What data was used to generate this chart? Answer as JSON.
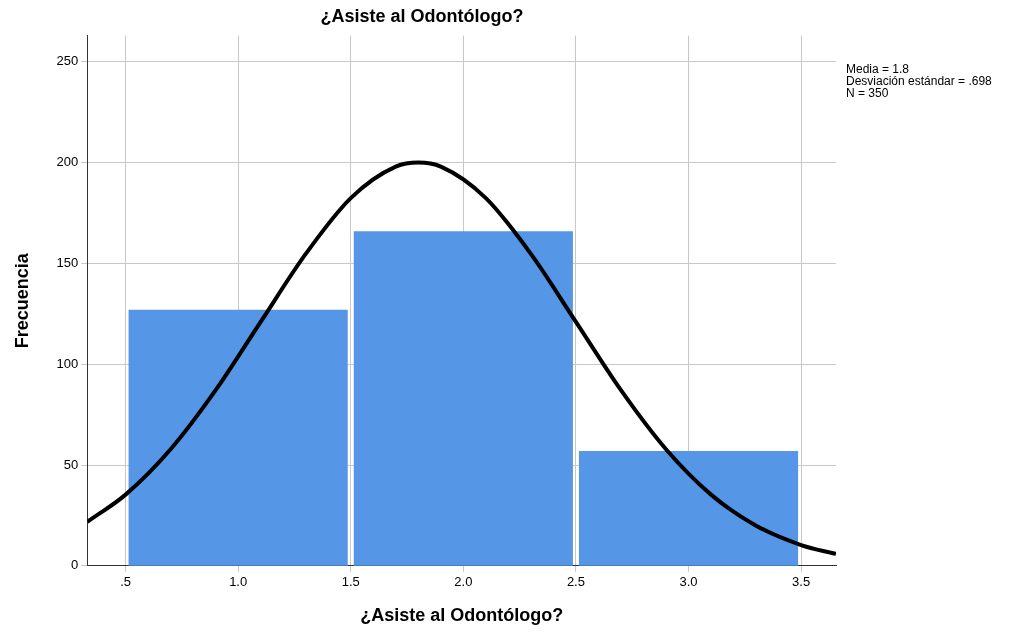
{
  "chart_data": {
    "type": "histogram",
    "title": "¿Asiste al Odontólogo?",
    "xlabel": "¿Asiste al Odontólogo?",
    "ylabel": "Frecuencia",
    "bins": [
      0.5,
      1.5,
      2.5,
      3.5
    ],
    "values": [
      127,
      166,
      57
    ],
    "color": "#5596e6",
    "series": [
      {
        "type": "line",
        "color": "#000000",
        "x": [
          0.33,
          0.5,
          0.7,
          0.9,
          1.1,
          1.3,
          1.5,
          1.7,
          1.8,
          1.9,
          2.1,
          2.3,
          2.5,
          2.7,
          2.9,
          3.1,
          3.3,
          3.5,
          3.655
        ],
        "values": [
          21.8,
          35.3,
          57.8,
          87.1,
          121.0,
          154.7,
          182.4,
          198.0,
          200.0,
          198.0,
          182.4,
          154.7,
          121.0,
          87.1,
          57.8,
          35.3,
          19.9,
          10.3,
          5.9
        ]
      }
    ],
    "xlim": [
      0.33,
      3.655
    ],
    "xticks": [
      {
        "value": 0.5,
        "label": ".5"
      },
      {
        "value": 1,
        "label": "1.0"
      },
      {
        "value": 1.5,
        "label": "1.5"
      },
      {
        "value": 2,
        "label": "2.0"
      },
      {
        "value": 2.5,
        "label": "2.5"
      },
      {
        "value": 3,
        "label": "3.0"
      },
      {
        "value": 3.5,
        "label": "3.5"
      }
    ],
    "ylim": [
      0,
      263
    ],
    "yticks": [
      0,
      50,
      100,
      150,
      200,
      250
    ],
    "grid": true,
    "legend": false,
    "annotations": [
      "Media = 1.8",
      "Desviación estándar = .698",
      "N = 350"
    ]
  }
}
